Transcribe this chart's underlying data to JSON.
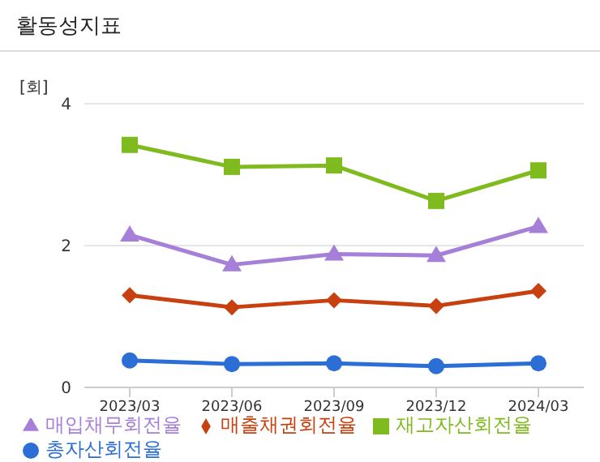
{
  "chart_data": {
    "type": "line",
    "title": "활동성지표",
    "ylabel": "[회]",
    "categories": [
      "2023/03",
      "2023/06",
      "2023/09",
      "2023/12",
      "2024/03"
    ],
    "series": [
      {
        "name": "총자산회전율",
        "color": "#2b6fd6",
        "marker": "circle",
        "values": [
          0.38,
          0.33,
          0.34,
          0.3,
          0.34
        ]
      },
      {
        "name": "매출채권회전율",
        "color": "#c8400f",
        "marker": "diamond",
        "values": [
          1.3,
          1.13,
          1.23,
          1.15,
          1.36
        ]
      },
      {
        "name": "재고자산회전율",
        "color": "#7fba1f",
        "marker": "square",
        "values": [
          3.42,
          3.11,
          3.13,
          2.63,
          3.06
        ]
      },
      {
        "name": "매입채무회전율",
        "color": "#a57fd8",
        "marker": "triangle",
        "values": [
          2.15,
          1.73,
          1.88,
          1.86,
          2.27
        ]
      }
    ],
    "ylim": [
      0,
      4
    ],
    "yticks": [
      0,
      2,
      4
    ],
    "grid": "y",
    "legend": "bottom"
  }
}
